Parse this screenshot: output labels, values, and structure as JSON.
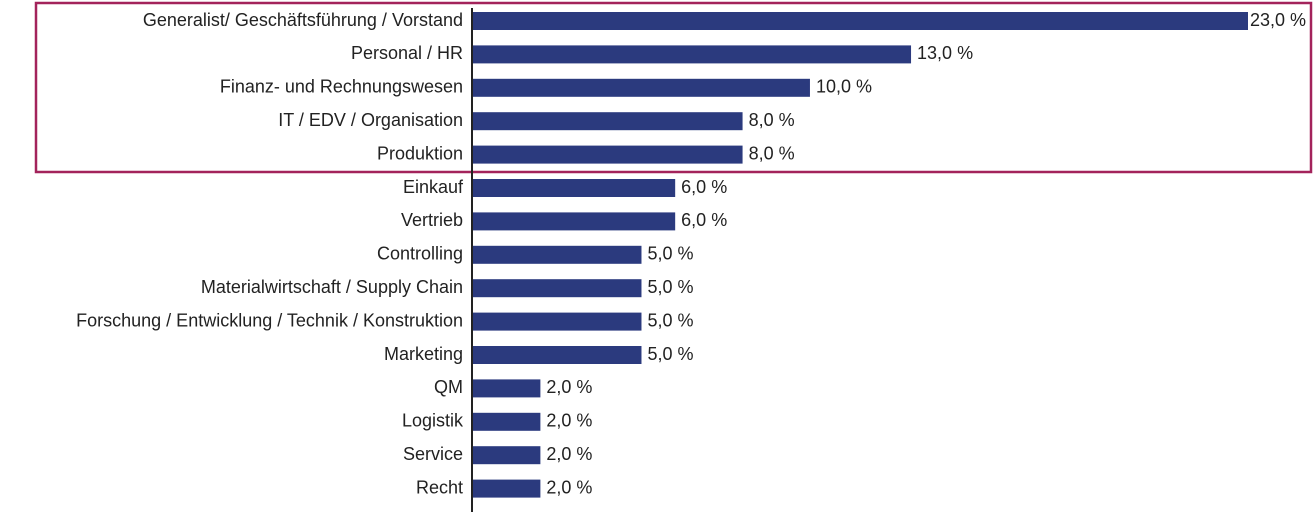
{
  "chart_data": {
    "type": "bar",
    "orientation": "horizontal",
    "categories": [
      "Generalist/ Geschäftsführung / Vorstand",
      "Personal / HR",
      "Finanz- und Rechnungswesen",
      "IT / EDV / Organisation",
      "Produktion",
      "Einkauf",
      "Vertrieb",
      "Controlling",
      "Materialwirtschaft / Supply Chain",
      "Forschung / Entwicklung / Technik / Konstruktion",
      "Marketing",
      "QM",
      "Logistik",
      "Service",
      "Recht"
    ],
    "values": [
      23,
      13,
      10,
      8,
      8,
      6,
      6,
      5,
      5,
      5,
      5,
      2,
      2,
      2,
      2
    ],
    "value_labels": [
      "23,0 %",
      "13,0 %",
      "10,0 %",
      "8,0 %",
      "8,0 %",
      "6,0 %",
      "6,0 %",
      "5,0 %",
      "5,0 %",
      "5,0 %",
      "5,0 %",
      "2,0 %",
      "2,0 %",
      "2,0 %",
      "2,0 %"
    ],
    "color": "#2b3a7e"
  }
}
